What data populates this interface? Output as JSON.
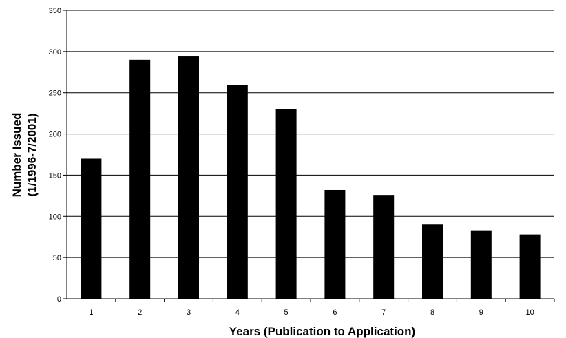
{
  "chart_data": {
    "type": "bar",
    "title": "",
    "xlabel": "Years (Publication to Application)",
    "ylabel_line1": "Number Issued",
    "ylabel_line2": "(1/1996-7/2001)",
    "categories": [
      "1",
      "2",
      "3",
      "4",
      "5",
      "6",
      "7",
      "8",
      "9",
      "10"
    ],
    "values": [
      170,
      290,
      294,
      259,
      230,
      132,
      126,
      90,
      83,
      78
    ],
    "ylim": [
      0,
      350
    ],
    "yticks": [
      0,
      50,
      100,
      150,
      200,
      250,
      300,
      350
    ],
    "grid": true,
    "legend": "none",
    "bar_color": "#000000"
  }
}
